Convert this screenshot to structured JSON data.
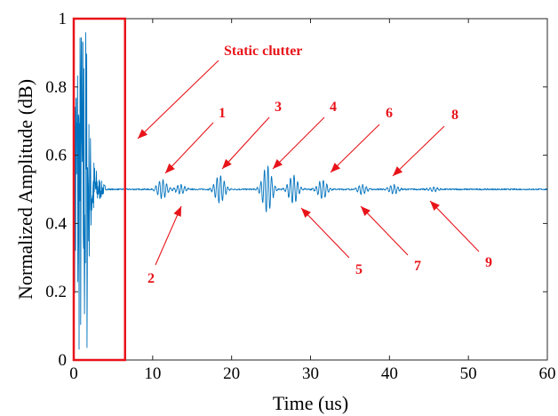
{
  "chart_data": {
    "type": "line",
    "title": "",
    "xlabel": "Time (us)",
    "ylabel": "Normalized Amplitude (dB)",
    "xlim": [
      0,
      60
    ],
    "ylim": [
      0,
      1
    ],
    "xticks": [
      0,
      10,
      20,
      30,
      40,
      50,
      60
    ],
    "yticks": [
      0,
      0.2,
      0.4,
      0.6,
      0.8,
      1
    ],
    "xtick_labels": [
      "0",
      "10",
      "20",
      "30",
      "40",
      "50",
      "60"
    ],
    "ytick_labels": [
      "0",
      "0.2",
      "0.4",
      "0.6",
      "0.8",
      "1"
    ],
    "grid": false,
    "baseline": 0.5,
    "line_color": "#0072bd",
    "annotation_color": "#e8141a",
    "static_clutter": {
      "label": "Static clutter",
      "x_range": [
        0,
        6.5
      ],
      "y_range": [
        0,
        1
      ]
    },
    "echoes": [
      {
        "label": "1",
        "t": 11.2,
        "amplitude": 0.52
      },
      {
        "label": "2",
        "t": 13.5,
        "amplitude": 0.49
      },
      {
        "label": "3",
        "t": 18.5,
        "amplitude": 0.53
      },
      {
        "label": "4",
        "t": 24.5,
        "amplitude": 0.55
      },
      {
        "label": "5",
        "t": 27.8,
        "amplitude": 0.47
      },
      {
        "label": "6",
        "t": 31.5,
        "amplitude": 0.52
      },
      {
        "label": "7",
        "t": 36.5,
        "amplitude": 0.49
      },
      {
        "label": "8",
        "t": 40.5,
        "amplitude": 0.51
      },
      {
        "label": "9",
        "t": 45.5,
        "amplitude": 0.495
      }
    ]
  }
}
